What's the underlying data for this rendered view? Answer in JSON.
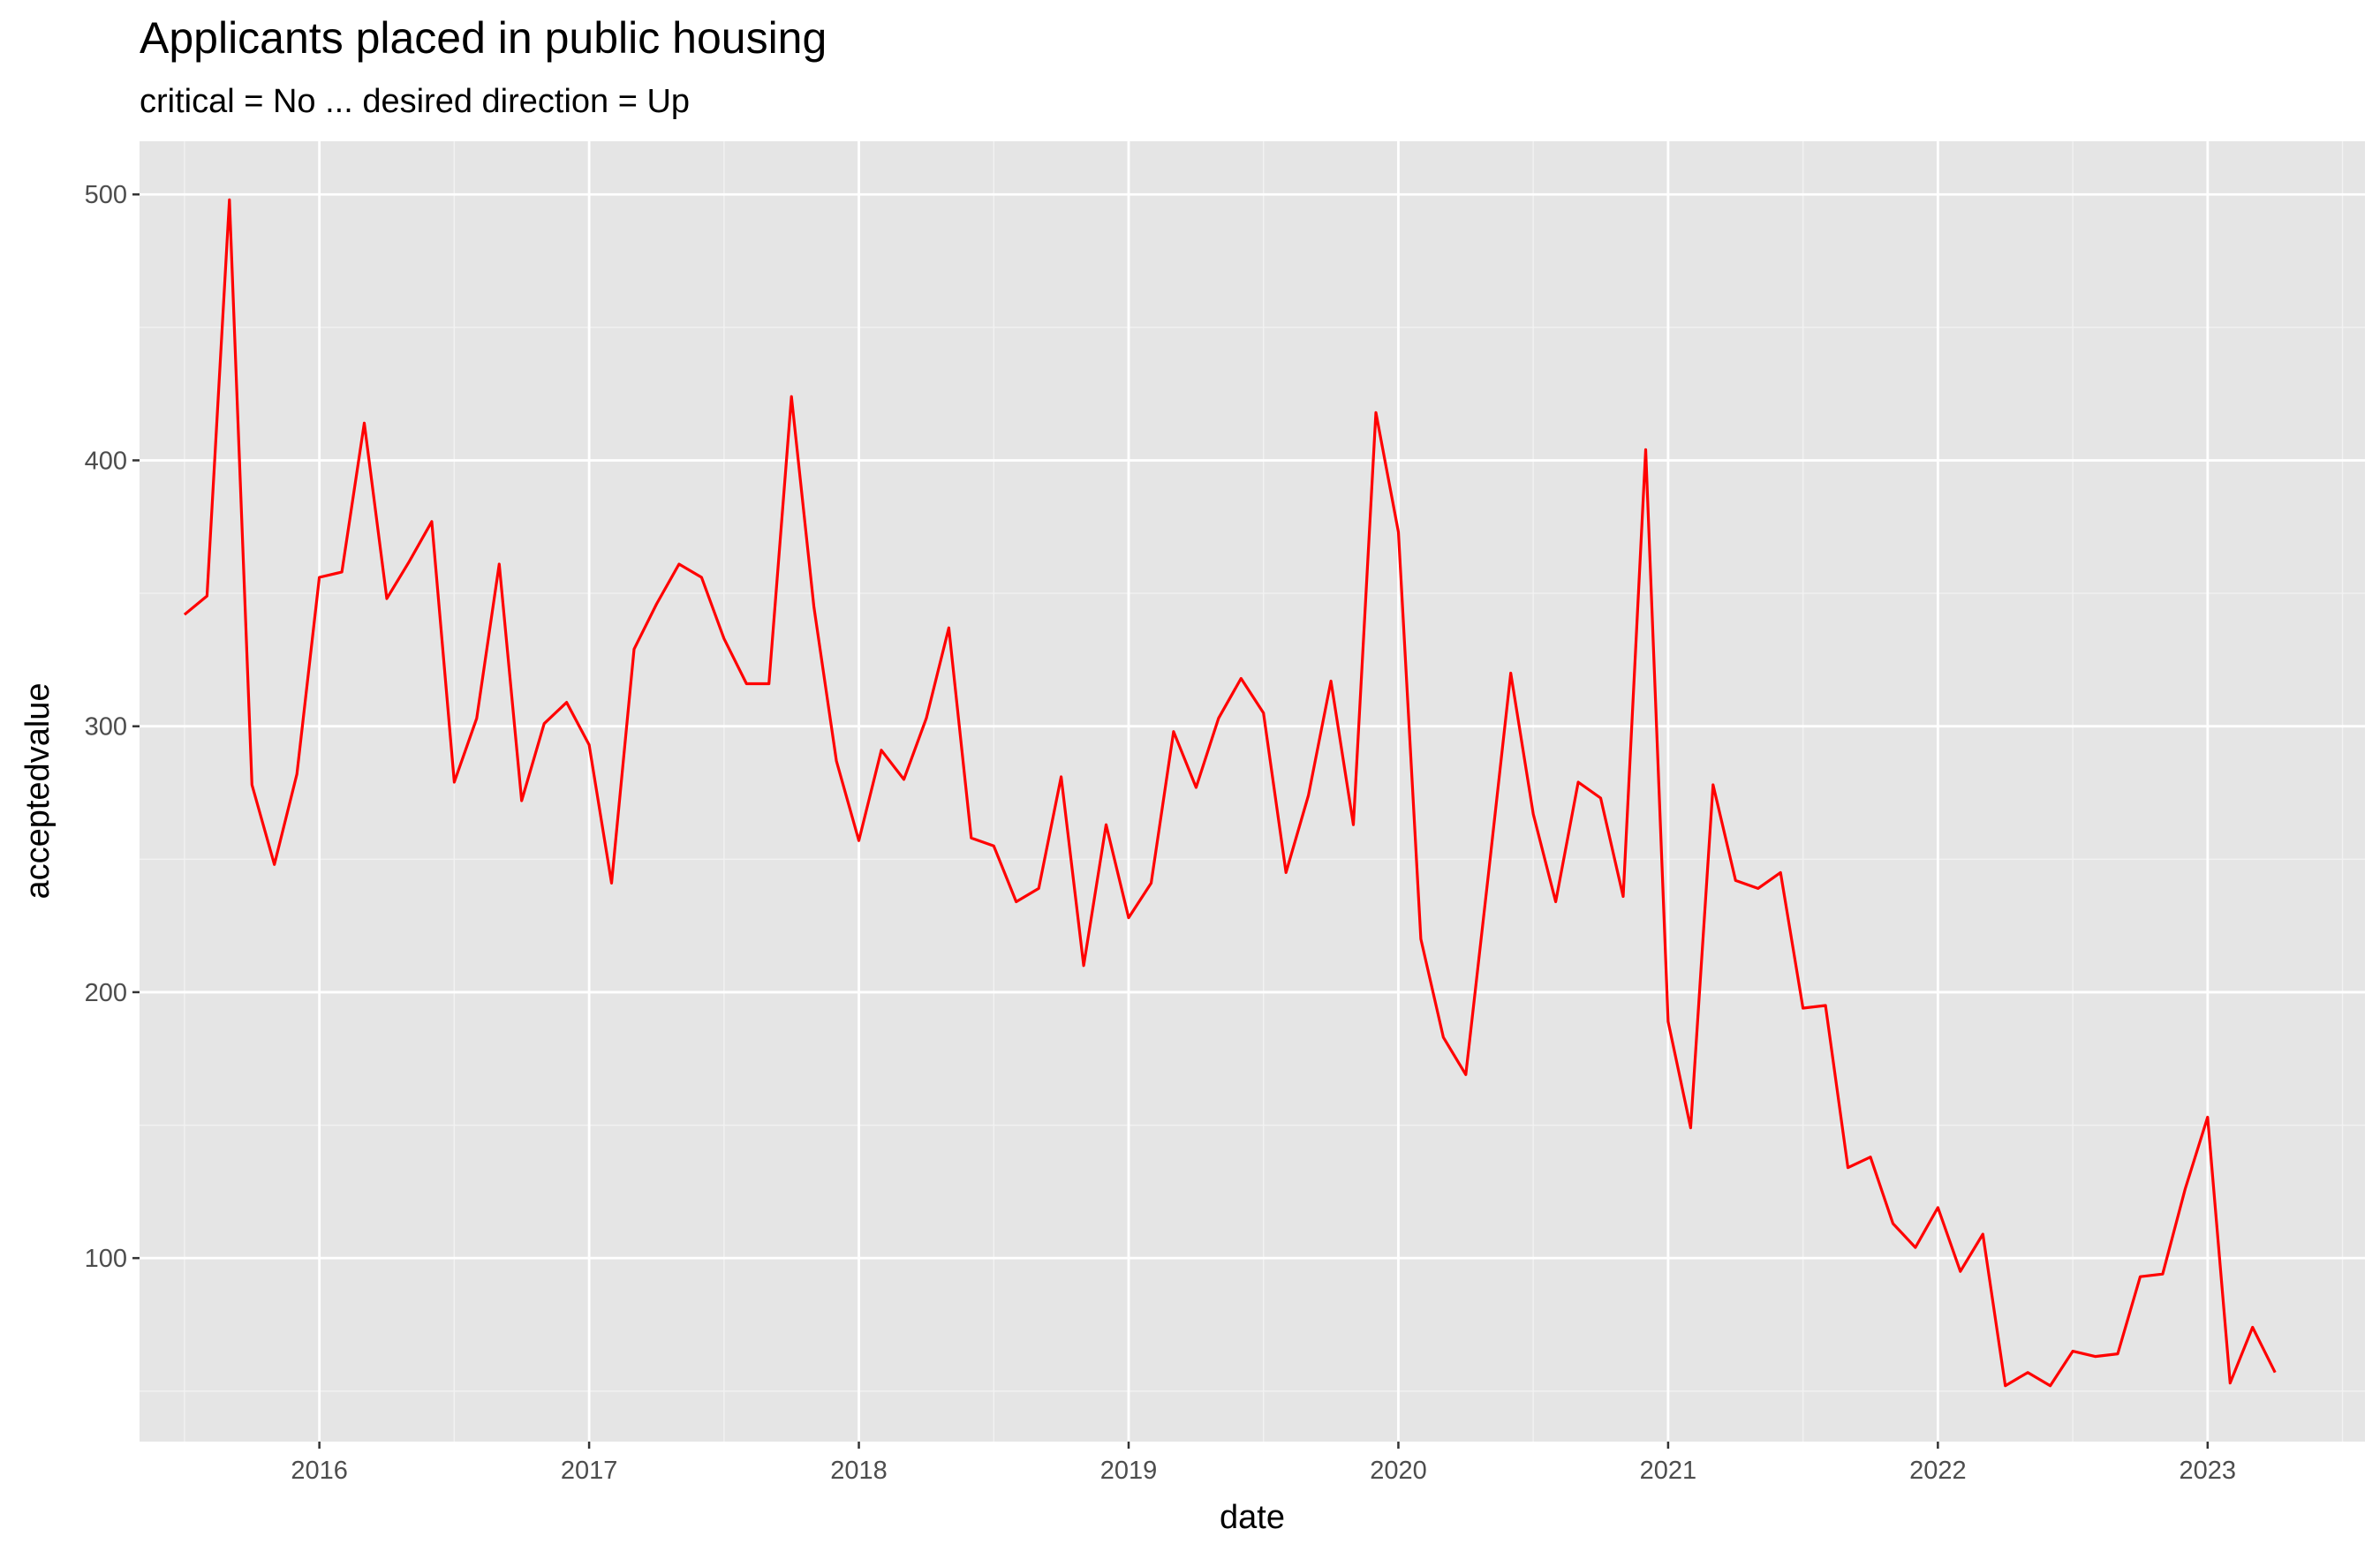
{
  "chart_data": {
    "type": "line",
    "title": "Applicants placed in public housing",
    "subtitle": "critical = No ... desired direction = Up",
    "xlabel": "date",
    "ylabel": "acceptedvalue",
    "x_ticks": [
      "2016",
      "2017",
      "2018",
      "2019",
      "2020",
      "2021",
      "2022",
      "2023"
    ],
    "y_ticks": [
      100,
      200,
      300,
      400,
      500
    ],
    "xlim": [
      "2015-05-01",
      "2023-08-01"
    ],
    "ylim": [
      31,
      520
    ],
    "grid": true,
    "legend": "none",
    "series": [
      {
        "color": "#ff0000",
        "x": [
          "2015-07",
          "2015-08",
          "2015-09",
          "2015-10",
          "2015-11",
          "2015-12",
          "2016-01",
          "2016-02",
          "2016-03",
          "2016-04",
          "2016-05",
          "2016-06",
          "2016-07",
          "2016-08",
          "2016-09",
          "2016-10",
          "2016-11",
          "2016-12",
          "2017-01",
          "2017-02",
          "2017-03",
          "2017-04",
          "2017-05",
          "2017-06",
          "2017-07",
          "2017-08",
          "2017-09",
          "2017-10",
          "2017-11",
          "2017-12",
          "2018-01",
          "2018-02",
          "2018-03",
          "2018-04",
          "2018-05",
          "2018-06",
          "2018-07",
          "2018-08",
          "2018-09",
          "2018-10",
          "2018-11",
          "2018-12",
          "2019-01",
          "2019-02",
          "2019-03",
          "2019-04",
          "2019-05",
          "2019-06",
          "2019-07",
          "2019-08",
          "2019-09",
          "2019-10",
          "2019-11",
          "2019-12",
          "2020-01",
          "2020-02",
          "2020-03",
          "2020-04",
          "2020-05",
          "2020-06",
          "2020-07",
          "2020-08",
          "2020-09",
          "2020-10",
          "2020-11",
          "2020-12",
          "2021-01",
          "2021-02",
          "2021-03",
          "2021-04",
          "2021-05",
          "2021-06",
          "2021-07",
          "2021-08",
          "2021-09",
          "2021-10",
          "2021-11",
          "2021-12",
          "2022-01",
          "2022-02",
          "2022-03",
          "2022-04",
          "2022-05",
          "2022-06",
          "2022-07",
          "2022-08",
          "2022-09",
          "2022-10",
          "2022-11",
          "2022-12",
          "2023-01",
          "2023-02",
          "2023-03",
          "2023-04"
        ],
        "values": [
          342,
          349,
          498,
          278,
          248,
          282,
          356,
          358,
          414,
          348,
          362,
          377,
          279,
          303,
          361,
          272,
          301,
          309,
          293,
          241,
          329,
          346,
          361,
          356,
          333,
          316,
          316,
          424,
          345,
          287,
          257,
          291,
          280,
          303,
          337,
          258,
          255,
          234,
          239,
          281,
          210,
          263,
          228,
          241,
          298,
          277,
          303,
          318,
          305,
          245,
          274,
          317,
          263,
          418,
          373,
          220,
          183,
          169,
          244,
          320,
          267,
          234,
          279,
          273,
          236,
          404,
          189,
          149,
          278,
          242,
          239,
          245,
          194,
          195,
          134,
          138,
          113,
          104,
          119,
          95,
          109,
          52,
          57,
          52,
          65,
          63,
          64,
          93,
          94,
          126,
          153,
          53,
          74,
          57
        ]
      }
    ]
  }
}
